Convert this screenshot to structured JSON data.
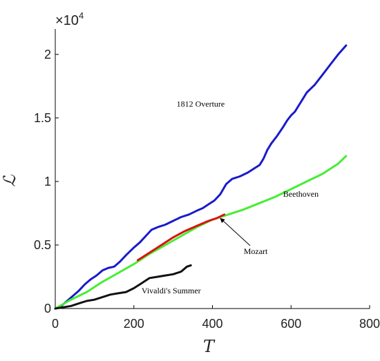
{
  "chart_data": {
    "type": "line",
    "xlabel": "T",
    "ylabel": "ℒ",
    "y_multiplier": "×10",
    "y_multiplier_exp": "4",
    "xlim": [
      0,
      800
    ],
    "ylim": [
      0,
      2.2
    ],
    "xticks": [
      "0",
      "200",
      "400",
      "600",
      "800"
    ],
    "yticks": [
      "0",
      "0.5",
      "1",
      "1.5",
      "2"
    ],
    "xtick_values": [
      0,
      200,
      400,
      600,
      800
    ],
    "ytick_values": [
      0,
      0.5,
      1,
      1.5,
      2
    ],
    "grid": false,
    "series": [
      {
        "color": "#1a1acc",
        "points": [
          [
            0,
            0
          ],
          [
            15,
            0.02
          ],
          [
            30,
            0.06
          ],
          [
            45,
            0.1
          ],
          [
            60,
            0.14
          ],
          [
            75,
            0.19
          ],
          [
            90,
            0.23
          ],
          [
            105,
            0.26
          ],
          [
            120,
            0.3
          ],
          [
            135,
            0.32
          ],
          [
            150,
            0.33
          ],
          [
            165,
            0.37
          ],
          [
            180,
            0.42
          ],
          [
            200,
            0.48
          ],
          [
            215,
            0.52
          ],
          [
            230,
            0.57
          ],
          [
            245,
            0.62
          ],
          [
            260,
            0.64
          ],
          [
            280,
            0.66
          ],
          [
            300,
            0.69
          ],
          [
            320,
            0.72
          ],
          [
            340,
            0.74
          ],
          [
            360,
            0.77
          ],
          [
            375,
            0.79
          ],
          [
            390,
            0.82
          ],
          [
            405,
            0.85
          ],
          [
            420,
            0.9
          ],
          [
            435,
            0.98
          ],
          [
            450,
            1.02
          ],
          [
            470,
            1.04
          ],
          [
            490,
            1.07
          ],
          [
            505,
            1.1
          ],
          [
            520,
            1.13
          ],
          [
            530,
            1.18
          ],
          [
            540,
            1.25
          ],
          [
            550,
            1.3
          ],
          [
            565,
            1.36
          ],
          [
            580,
            1.43
          ],
          [
            590,
            1.48
          ],
          [
            600,
            1.52
          ],
          [
            610,
            1.55
          ],
          [
            620,
            1.6
          ],
          [
            630,
            1.65
          ],
          [
            640,
            1.7
          ],
          [
            660,
            1.76
          ],
          [
            680,
            1.84
          ],
          [
            700,
            1.92
          ],
          [
            720,
            2.0
          ],
          [
            740,
            2.07
          ]
        ]
      },
      {
        "color": "#44ee33",
        "points": [
          [
            0,
            0
          ],
          [
            40,
            0.07
          ],
          [
            80,
            0.13
          ],
          [
            120,
            0.21
          ],
          [
            160,
            0.28
          ],
          [
            200,
            0.35
          ],
          [
            240,
            0.43
          ],
          [
            280,
            0.5
          ],
          [
            320,
            0.57
          ],
          [
            360,
            0.64
          ],
          [
            400,
            0.7
          ],
          [
            440,
            0.74
          ],
          [
            480,
            0.78
          ],
          [
            520,
            0.83
          ],
          [
            560,
            0.88
          ],
          [
            600,
            0.94
          ],
          [
            640,
            1.0
          ],
          [
            680,
            1.06
          ],
          [
            720,
            1.14
          ],
          [
            740,
            1.2
          ]
        ]
      },
      {
        "color": "#dd1111",
        "points": [
          [
            210,
            0.38
          ],
          [
            240,
            0.44
          ],
          [
            270,
            0.5
          ],
          [
            300,
            0.56
          ],
          [
            330,
            0.61
          ],
          [
            360,
            0.65
          ],
          [
            390,
            0.69
          ],
          [
            410,
            0.71
          ],
          [
            430,
            0.74
          ]
        ]
      },
      {
        "color": "#111111",
        "points": [
          [
            0,
            0
          ],
          [
            20,
            0.01
          ],
          [
            40,
            0.02
          ],
          [
            60,
            0.04
          ],
          [
            80,
            0.06
          ],
          [
            100,
            0.07
          ],
          [
            120,
            0.09
          ],
          [
            140,
            0.11
          ],
          [
            160,
            0.12
          ],
          [
            180,
            0.13
          ],
          [
            200,
            0.16
          ],
          [
            220,
            0.2
          ],
          [
            240,
            0.24
          ],
          [
            260,
            0.25
          ],
          [
            280,
            0.26
          ],
          [
            300,
            0.27
          ],
          [
            320,
            0.29
          ],
          [
            335,
            0.33
          ],
          [
            345,
            0.34
          ]
        ]
      }
    ],
    "annotations": [
      {
        "text": "1812 Overture",
        "x": 370,
        "y": 1.59,
        "color": "#000000"
      },
      {
        "text": "Beethoven",
        "x": 625,
        "y": 0.88,
        "color": "#000000"
      },
      {
        "text": "Mozart",
        "x": 510,
        "y": 0.43,
        "color": "#000000",
        "arrow_to_x": 420,
        "arrow_to_y": 0.71
      },
      {
        "text": "Vivaldi's Summer",
        "x": 295,
        "y": 0.12,
        "color": "#000000"
      }
    ]
  }
}
